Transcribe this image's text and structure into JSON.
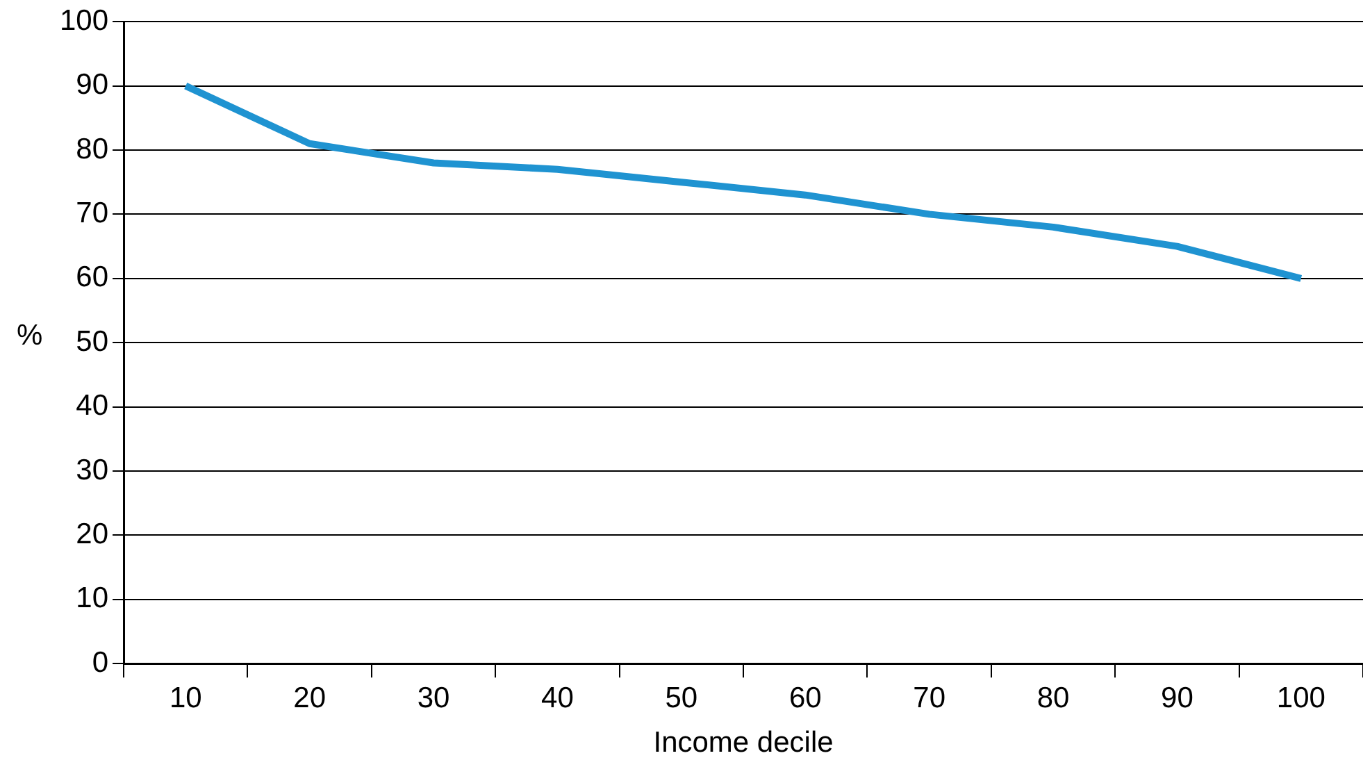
{
  "chart_data": {
    "type": "line",
    "xlabel": "Income decile",
    "ylabel": "%",
    "categories": [
      "10",
      "20",
      "30",
      "40",
      "50",
      "60",
      "70",
      "80",
      "90",
      "100"
    ],
    "series": [
      {
        "color": "#1f93d1",
        "values": [
          90,
          81,
          78,
          77,
          75,
          73,
          70,
          68,
          65,
          60
        ]
      }
    ],
    "ylim": [
      0,
      100
    ],
    "yticks": [
      0,
      10,
      20,
      30,
      40,
      50,
      60,
      70,
      80,
      90,
      100
    ],
    "grid": "y",
    "legend": false,
    "marker": "none",
    "line_style": "solid"
  }
}
